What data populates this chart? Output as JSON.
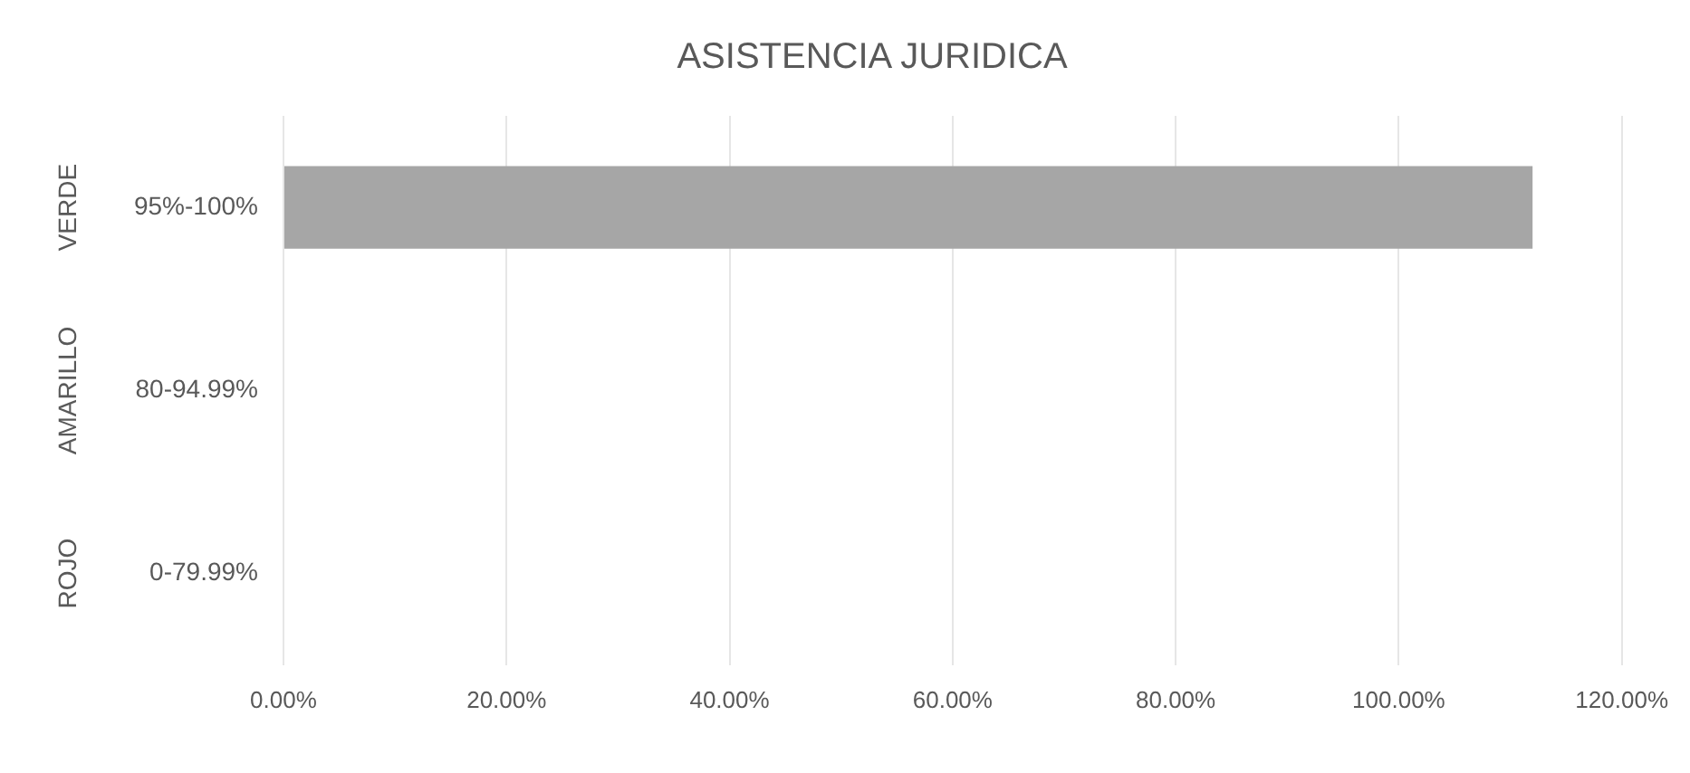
{
  "chart_data": {
    "type": "bar",
    "orientation": "horizontal",
    "title": "ASISTENCIA JURIDICA",
    "categories": [
      "95%-100%",
      "80-94.99%",
      "0-79.99%"
    ],
    "values": [
      112,
      null,
      null
    ],
    "color": "#a6a6a6",
    "xlim": [
      0,
      120
    ],
    "xticks": [
      {
        "value": 0,
        "label": "0.00%"
      },
      {
        "value": 20,
        "label": "20.00%"
      },
      {
        "value": 40,
        "label": "40.00%"
      },
      {
        "value": 60,
        "label": "60.00%"
      },
      {
        "value": 80,
        "label": "80.00%"
      },
      {
        "value": 100,
        "label": "100.00%"
      },
      {
        "value": 120,
        "label": "120.00%"
      }
    ],
    "grid": "x",
    "legend": false,
    "annotations": [
      "VERDE",
      "AMARILLO",
      "ROJO"
    ]
  }
}
